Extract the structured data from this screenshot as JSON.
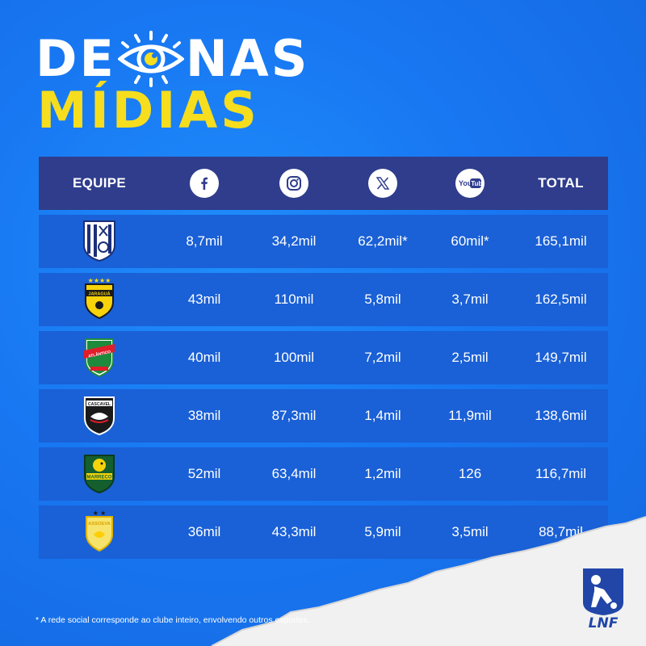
{
  "title": {
    "line1_left": "DE",
    "line1_right": "NAS",
    "line2": "MÍDIAS"
  },
  "colors": {
    "background": "#1877f2",
    "header": "#2f3d8c",
    "row": "#1a60d6",
    "accent_yellow": "#f6dd1e"
  },
  "table": {
    "headers": {
      "team": "EQUIPE",
      "facebook_icon": "facebook-icon",
      "instagram_icon": "instagram-icon",
      "x_icon": "x-icon",
      "youtube_icon": "youtube-icon",
      "total": "TOTAL"
    },
    "rows": [
      {
        "team_logo": "team-logo-1",
        "facebook": "8,7mil",
        "instagram": "34,2mil",
        "x": "62,2mil*",
        "youtube": "60mil*",
        "total": "165,1mil"
      },
      {
        "team_logo": "jaragua-logo",
        "logo_text": "JARAGUÁ",
        "facebook": "43mil",
        "instagram": "110mil",
        "x": "5,8mil",
        "youtube": "3,7mil",
        "total": "162,5mil"
      },
      {
        "team_logo": "atlantico-logo",
        "logo_text": "ATLÂNTICO",
        "facebook": "40mil",
        "instagram": "100mil",
        "x": "7,2mil",
        "youtube": "2,5mil",
        "total": "149,7mil"
      },
      {
        "team_logo": "cascavel-logo",
        "logo_text": "CASCAVEL",
        "facebook": "38mil",
        "instagram": "87,3mil",
        "x": "1,4mil",
        "youtube": "11,9mil",
        "total": "138,6mil"
      },
      {
        "team_logo": "marreco-logo",
        "logo_text": "MARRECO",
        "facebook": "52mil",
        "instagram": "63,4mil",
        "x": "1,2mil",
        "youtube": "126",
        "total": "116,7mil"
      },
      {
        "team_logo": "assoeva-logo",
        "logo_text": "ASSOEVA",
        "facebook": "36mil",
        "instagram": "43,3mil",
        "x": "5,9mil",
        "youtube": "3,5mil",
        "total": "88,7mil"
      }
    ]
  },
  "footnote": "* A rede social corresponde ao clube inteiro, envolvendo outros esportes.",
  "brand": {
    "name": "LNF"
  }
}
